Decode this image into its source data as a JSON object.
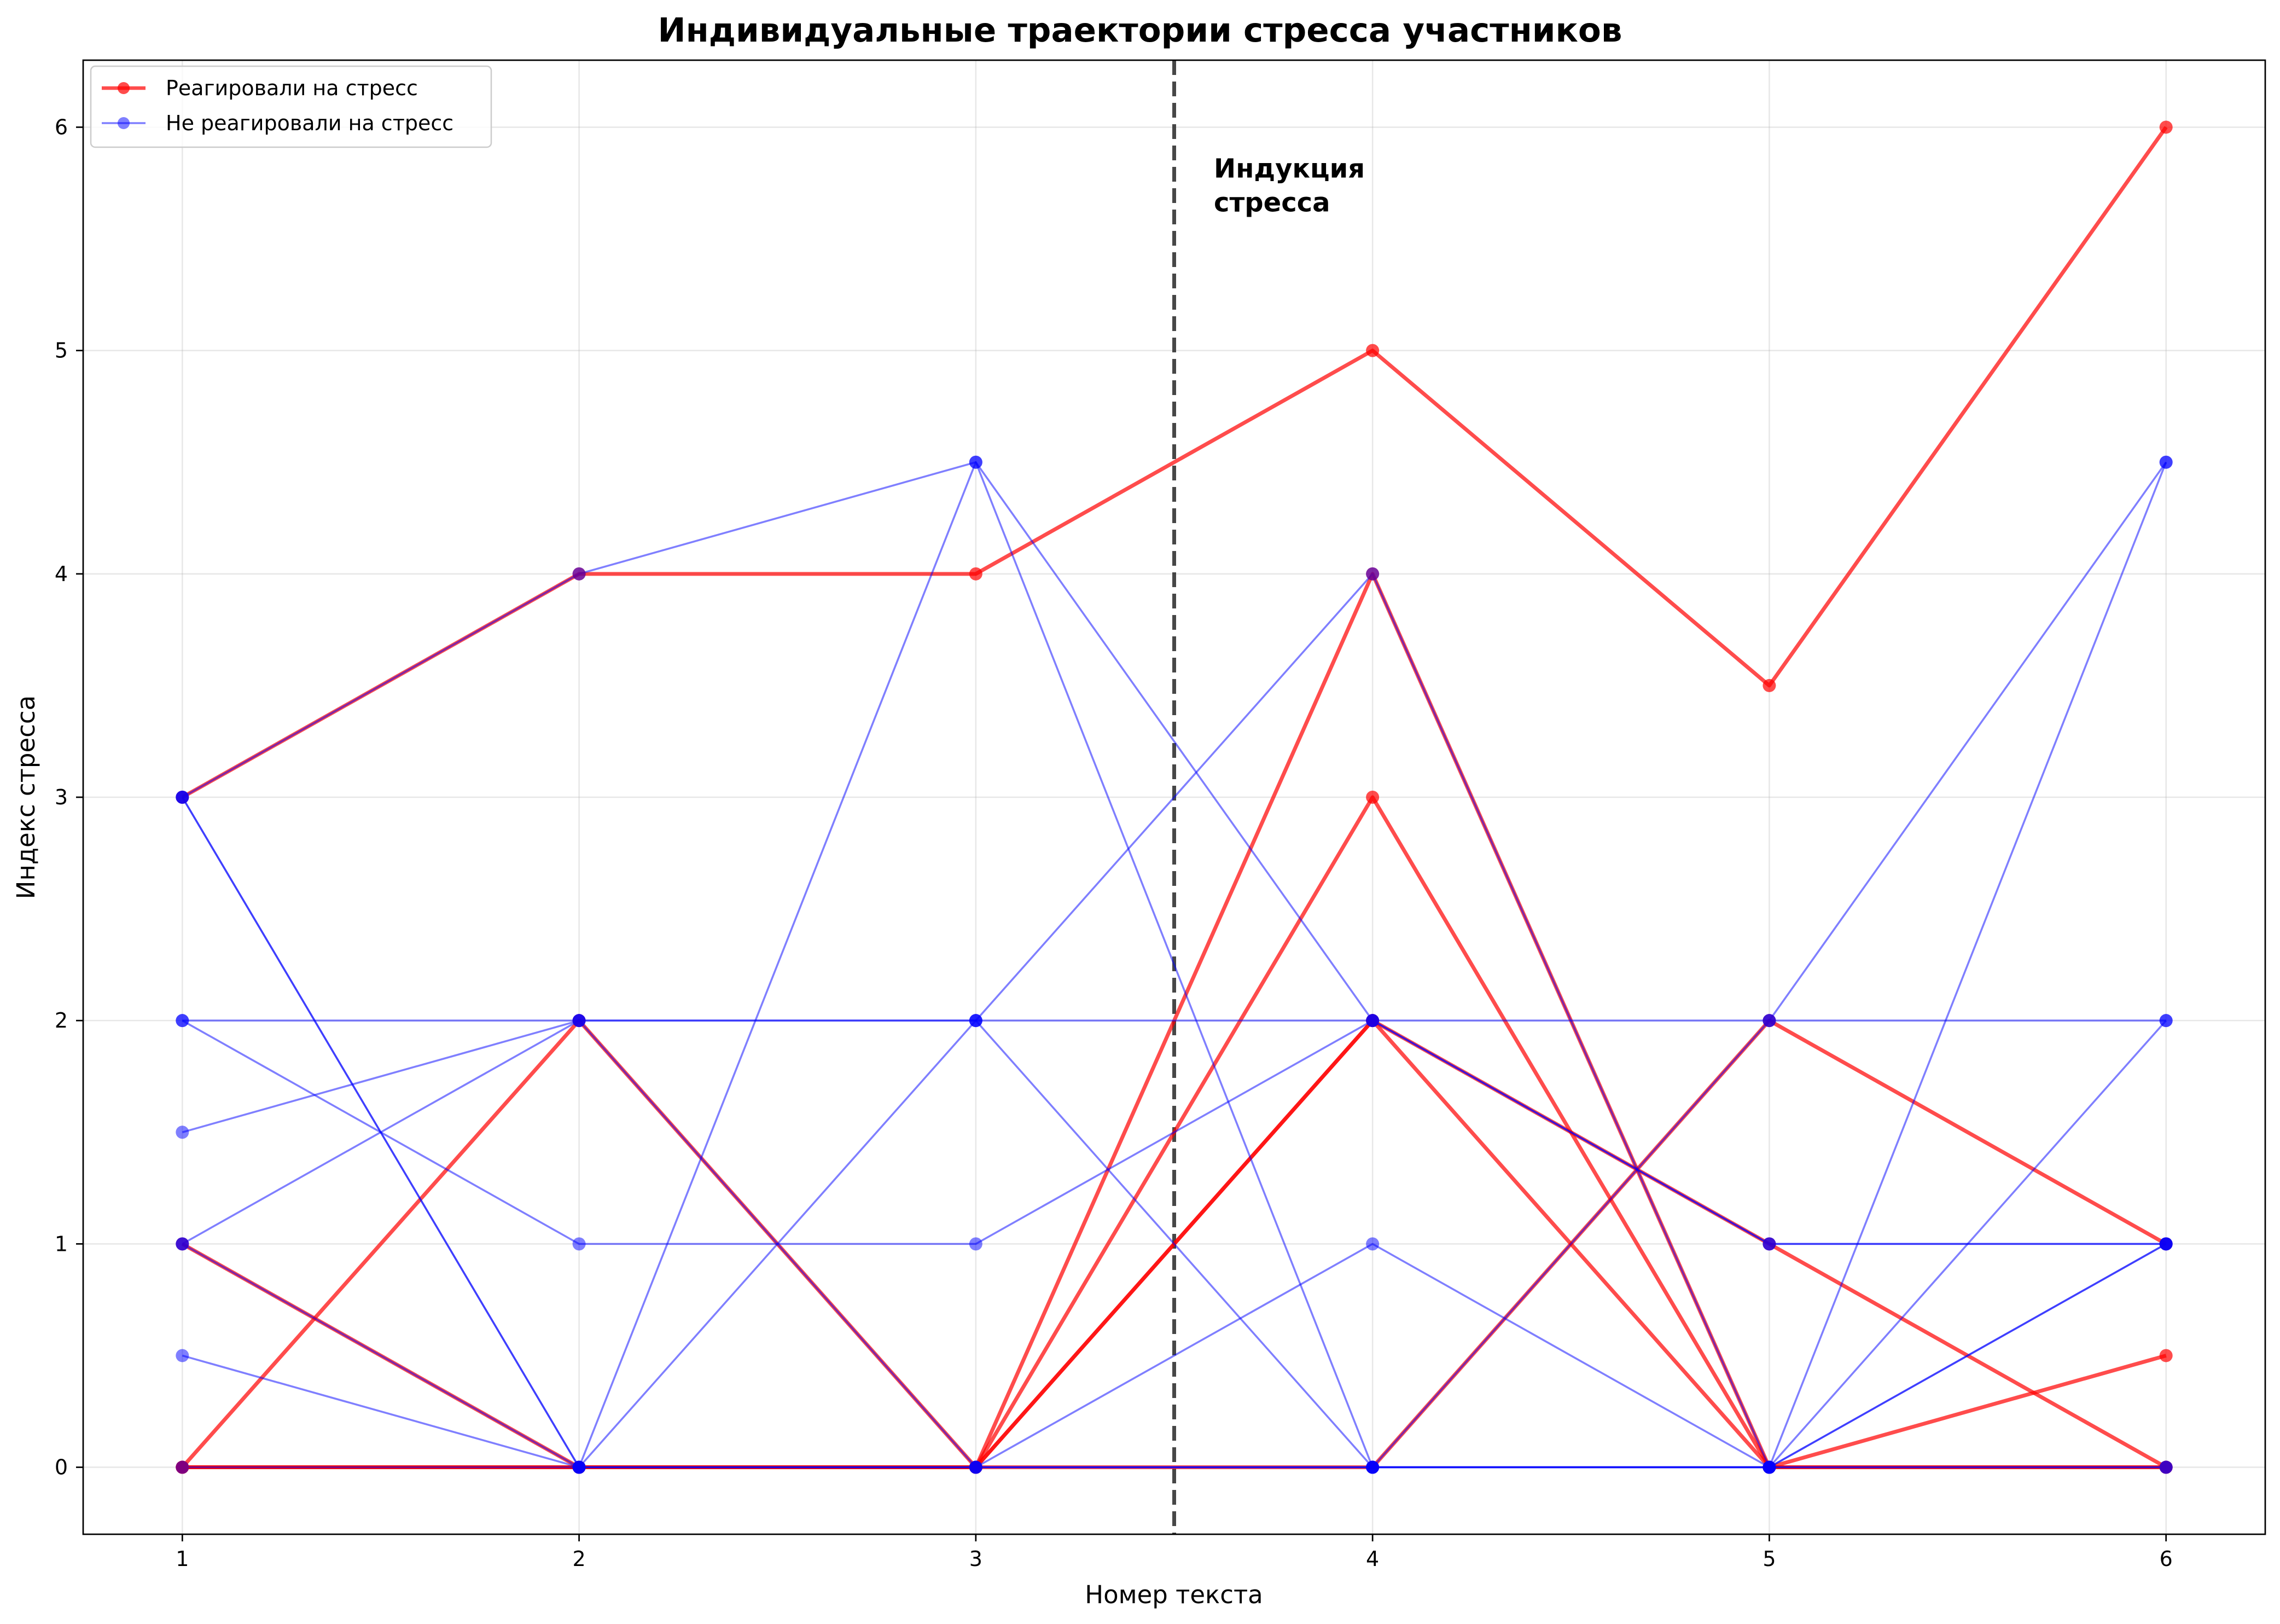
{
  "chart_data": {
    "type": "line",
    "title": "Индивидуальные траектории стресса участников",
    "xlabel": "Номер текста",
    "ylabel": "Индекс стресса",
    "xlim": [
      0.75,
      6.25
    ],
    "ylim": [
      -0.3,
      6.3
    ],
    "x_ticks": [
      1,
      2,
      3,
      4,
      5,
      6
    ],
    "y_ticks": [
      0,
      1,
      2,
      3,
      4,
      5,
      6
    ],
    "grid": true,
    "legend_position": "top-left",
    "groups": {
      "responders": {
        "label": "Реагировали на стресс",
        "color": "#ff0000"
      },
      "non_responders": {
        "label": "Не реагировали на стресс",
        "color": "#0000ff"
      }
    },
    "annotation": {
      "x": 3.5,
      "line_style": "dashed",
      "color": "#333333",
      "lines": [
        "Индукция",
        "стресса"
      ],
      "text_x": 3.6,
      "text_y": 5.75
    },
    "x": [
      1,
      2,
      3,
      4,
      5,
      6
    ],
    "series": [
      {
        "group": "responders",
        "values": [
          3,
          4,
          4,
          5,
          3.5,
          6
        ]
      },
      {
        "group": "responders",
        "values": [
          0,
          2,
          0,
          4,
          0,
          0
        ]
      },
      {
        "group": "responders",
        "values": [
          1,
          0,
          0,
          2,
          0,
          0.5
        ]
      },
      {
        "group": "responders",
        "values": [
          0,
          0,
          0,
          3,
          0,
          0
        ]
      },
      {
        "group": "responders",
        "values": [
          0,
          0,
          0,
          0,
          2,
          1
        ]
      },
      {
        "group": "responders",
        "values": [
          0,
          0,
          0,
          2,
          1,
          0
        ]
      },
      {
        "group": "non_responders",
        "values": [
          3,
          4,
          4.5,
          2,
          1,
          1
        ]
      },
      {
        "group": "non_responders",
        "values": [
          3,
          0,
          0,
          0,
          0,
          1
        ]
      },
      {
        "group": "non_responders",
        "values": [
          2,
          2,
          2,
          2,
          2,
          2
        ]
      },
      {
        "group": "non_responders",
        "values": [
          1,
          2,
          2,
          4,
          0,
          4.5
        ]
      },
      {
        "group": "non_responders",
        "values": [
          1.5,
          2,
          0,
          0,
          0,
          0
        ]
      },
      {
        "group": "non_responders",
        "values": [
          0.5,
          0,
          4.5,
          0,
          2,
          4.5
        ]
      },
      {
        "group": "non_responders",
        "values": [
          2,
          1,
          1,
          2,
          1,
          1
        ]
      },
      {
        "group": "non_responders",
        "values": [
          1,
          0,
          0,
          1,
          0,
          2
        ]
      },
      {
        "group": "non_responders",
        "values": [
          3,
          0,
          2,
          0,
          0,
          1
        ]
      },
      {
        "group": "non_responders",
        "values": [
          0,
          0,
          0,
          0,
          0,
          0
        ]
      }
    ]
  }
}
